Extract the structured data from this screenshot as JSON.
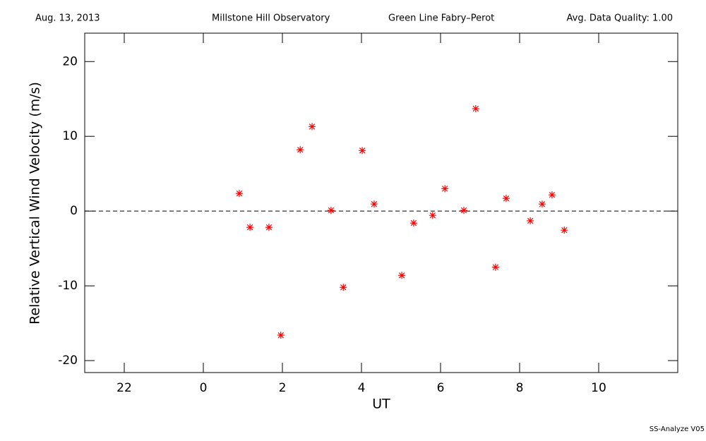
{
  "chart_data": {
    "type": "scatter",
    "header": [
      "Aug. 13, 2013",
      "Millstone Hill Observatory",
      "Green Line Fabry–Perot",
      "Avg. Data Quality: 1.00"
    ],
    "x_label": "UT",
    "y_label": "Relative Vertical Wind Velocity (m/s)",
    "footer": "SS-Analyze V05",
    "xlim": [
      -3,
      12
    ],
    "xticks": [
      {
        "value": -2,
        "label": "22"
      },
      0,
      2,
      4,
      6,
      8,
      10
    ],
    "ylim": [
      -21.6,
      23.8
    ],
    "yticks": [
      -20,
      -10,
      0,
      10,
      20
    ],
    "hline": 0,
    "color": "#ff0000",
    "x": [
      0.91,
      1.18,
      1.66,
      1.96,
      2.45,
      2.75,
      3.23,
      3.54,
      4.02,
      4.32,
      5.02,
      5.32,
      5.8,
      6.11,
      6.59,
      6.89,
      7.39,
      7.66,
      8.27,
      8.57,
      8.82,
      9.13
    ],
    "values": [
      2.36,
      -2.17,
      -2.17,
      -16.6,
      8.2,
      11.3,
      0.1,
      -10.2,
      8.1,
      0.94,
      -8.6,
      -1.6,
      -0.57,
      3.0,
      0.1,
      13.7,
      -7.5,
      1.7,
      -1.3,
      0.94,
      2.17,
      -2.55
    ]
  }
}
